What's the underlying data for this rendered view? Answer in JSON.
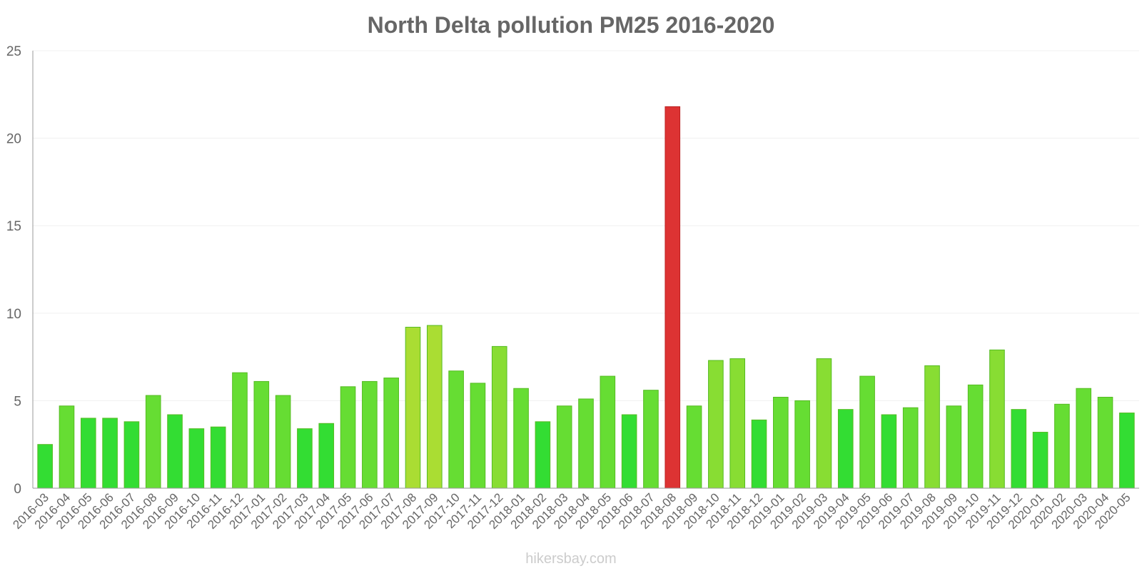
{
  "chart_data": {
    "type": "bar",
    "title": "North Delta pollution PM25 2016-2020",
    "xlabel": "",
    "ylabel": "",
    "ylim": [
      0,
      25
    ],
    "yticks": [
      0,
      5,
      10,
      15,
      20,
      25
    ],
    "grid": true,
    "source_label": "hikersbay.com",
    "categories": [
      "2016-03",
      "2016-04",
      "2016-05",
      "2016-06",
      "2016-07",
      "2016-08",
      "2016-09",
      "2016-10",
      "2016-11",
      "2016-12",
      "2017-01",
      "2017-02",
      "2017-03",
      "2017-04",
      "2017-05",
      "2017-06",
      "2017-07",
      "2017-08",
      "2017-09",
      "2017-10",
      "2017-11",
      "2017-12",
      "2018-01",
      "2018-02",
      "2018-03",
      "2018-04",
      "2018-05",
      "2018-06",
      "2018-07",
      "2018-08",
      "2018-09",
      "2018-10",
      "2018-11",
      "2018-12",
      "2019-01",
      "2019-02",
      "2019-03",
      "2019-04",
      "2019-05",
      "2019-06",
      "2019-07",
      "2019-08",
      "2019-09",
      "2019-10",
      "2019-11",
      "2019-12",
      "2020-01",
      "2020-02",
      "2020-03",
      "2020-04",
      "2020-05"
    ],
    "values": [
      2.5,
      4.7,
      4.0,
      4.0,
      3.8,
      5.3,
      4.2,
      3.4,
      3.5,
      6.6,
      6.1,
      5.3,
      3.4,
      3.7,
      5.8,
      6.1,
      6.3,
      9.2,
      9.3,
      6.7,
      6.0,
      8.1,
      5.7,
      3.8,
      4.7,
      5.1,
      6.4,
      4.2,
      5.6,
      21.8,
      4.7,
      7.3,
      7.4,
      3.9,
      5.2,
      5.0,
      7.4,
      4.5,
      6.4,
      4.2,
      4.6,
      7.0,
      4.7,
      5.9,
      7.9,
      4.5,
      3.2,
      4.8,
      5.7,
      5.2,
      4.3
    ],
    "colors": {
      "low": "#33dd33",
      "medium": "#66dd33",
      "elevated": "#88dd33",
      "high": "#aadd33",
      "extreme": "#dd3333",
      "axis": "#999999",
      "grid": "#f0f0f0"
    }
  }
}
